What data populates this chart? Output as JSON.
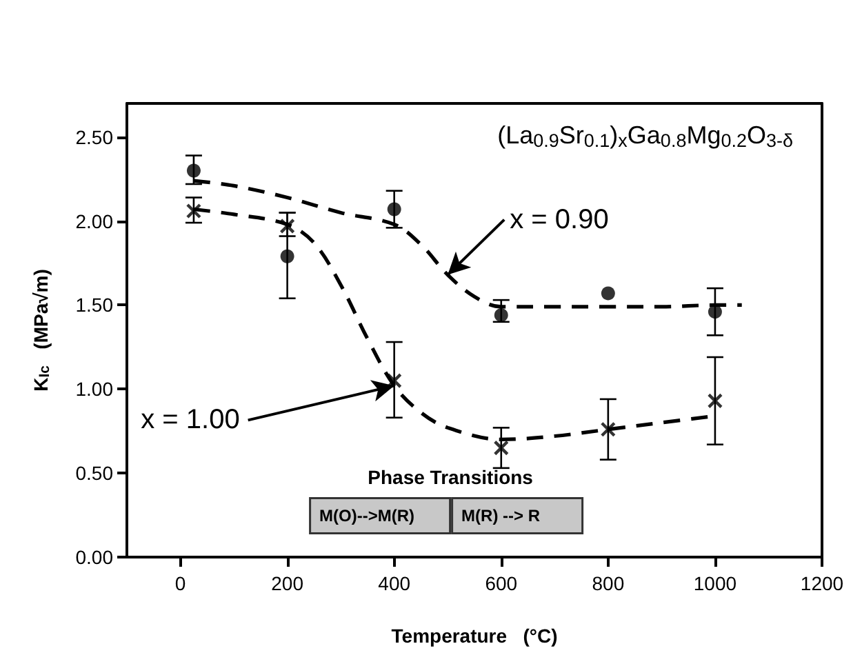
{
  "chart_data": {
    "type": "scatter",
    "title": "(La$_{0.9}$Sr$_{0.1}$)$_{x}$Ga$_{0.8}$Mg$_{0.2}$O$_{3-δ}$",
    "xlabel": "Temperature   (°C)",
    "ylabel": "K$_{Ic}$   (MPa√m)",
    "xlim": [
      -100,
      1200
    ],
    "xticks": [
      0,
      200,
      400,
      600,
      800,
      1000,
      1200
    ],
    "ylim": [
      0,
      2.7
    ],
    "yticks": [
      {
        "value": 0,
        "label": "0.00"
      },
      {
        "value": 0.5,
        "label": "0.50"
      },
      {
        "value": 1,
        "label": "1.00"
      },
      {
        "value": 1.5,
        "label": "1.50"
      },
      {
        "value": 2,
        "label": "2.00"
      },
      {
        "value": 2.5,
        "label": "2.50"
      }
    ],
    "grid": false,
    "series": [
      {
        "marker": "circle",
        "color": "#000000",
        "x": [
          25,
          200,
          400,
          600,
          800,
          1000
        ],
        "values": [
          2.3,
          1.79,
          2.07,
          1.44,
          1.57,
          1.46
        ],
        "errors": [
          [
            2.22,
            2.39
          ],
          [
            1.54,
            2.05
          ],
          [
            1.96,
            2.18
          ],
          [
            1.4,
            1.53
          ],
          null,
          [
            1.32,
            1.6
          ]
        ]
      },
      {
        "marker": "cross",
        "color": "#000000",
        "x": [
          25,
          200,
          400,
          600,
          800,
          1000
        ],
        "values": [
          2.06,
          1.97,
          1.05,
          0.65,
          0.76,
          0.93
        ],
        "errors": [
          [
            1.99,
            2.14
          ],
          [
            1.91,
            2.05
          ],
          [
            0.83,
            1.28
          ],
          [
            0.53,
            0.77
          ],
          [
            0.58,
            0.94
          ],
          [
            0.67,
            1.19
          ]
        ]
      },
      {
        "type": "line",
        "marker": "none",
        "line_style": "dashed",
        "color": "#000000",
        "x": [
          25,
          100,
          200,
          300,
          400,
          450,
          500,
          550,
          600,
          700,
          800,
          900,
          1000,
          1050
        ],
        "values": [
          2.24,
          2.21,
          2.14,
          2.05,
          1.98,
          1.86,
          1.68,
          1.55,
          1.49,
          1.49,
          1.49,
          1.49,
          1.5,
          1.5
        ]
      },
      {
        "type": "line",
        "marker": "none",
        "line_style": "dashed",
        "color": "#000000",
        "x": [
          25,
          100,
          200,
          250,
          300,
          350,
          400,
          450,
          500,
          600,
          700,
          800,
          900,
          1000
        ],
        "values": [
          2.07,
          2.04,
          1.98,
          1.87,
          1.62,
          1.3,
          1.02,
          0.86,
          0.77,
          0.7,
          0.72,
          0.76,
          0.8,
          0.84
        ]
      }
    ],
    "annotations": [
      {
        "text": "x = 0.90",
        "x": 500,
        "y": 1.68
      },
      {
        "text": "x = 1.00",
        "x": 400,
        "y": 1.02
      },
      "Phase Transitions",
      "M(O)-->M(R)",
      "M(R) --> R"
    ]
  }
}
